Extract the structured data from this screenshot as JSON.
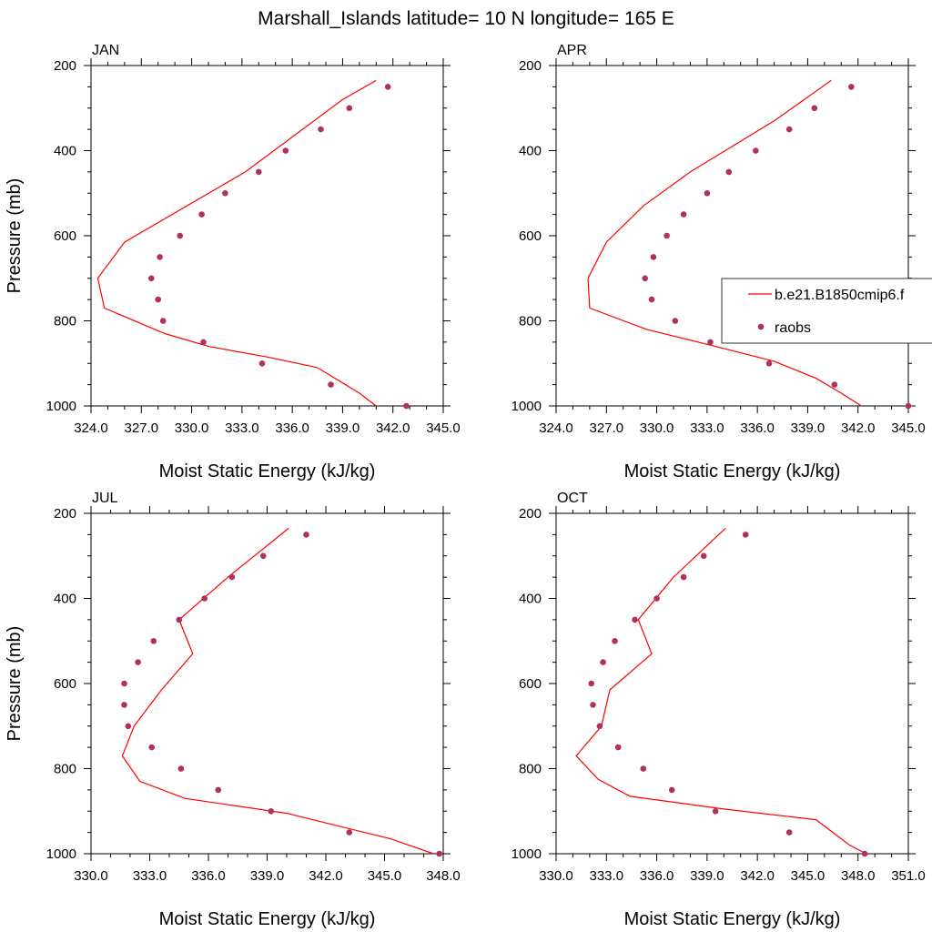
{
  "figure": {
    "title": "Marshall_Islands  latitude= 10 N longitude= 165 E"
  },
  "legend": {
    "items": [
      {
        "label": "b.e21.B1850cmip6.f",
        "kind": "line",
        "color": "#ff0000"
      },
      {
        "label": "raobs",
        "kind": "marker",
        "color": "#b03060"
      }
    ]
  },
  "colors": {
    "model_line": "#ff0000",
    "obs_marker": "#b03060"
  },
  "chart_data": [
    {
      "type": "line",
      "panel_label": "JAN",
      "xlabel": "Moist Static Energy (kJ/kg)",
      "ylabel": "Pressure (mb)",
      "xlim": [
        324.0,
        345.0
      ],
      "ylim": [
        200,
        1000
      ],
      "y_inverted": true,
      "xticks": [
        "324.0",
        "327.0",
        "330.0",
        "333.0",
        "336.0",
        "339.0",
        "342.0",
        "345.0"
      ],
      "yticks": [
        "200",
        "400",
        "600",
        "800",
        "1000"
      ],
      "series": [
        {
          "name": "b.e21.B1850cmip6.f",
          "kind": "line",
          "x": [
            341.0,
            339.0,
            333.2,
            326.0,
            324.4,
            324.8,
            328.4,
            331.0,
            334.5,
            337.5,
            340.0,
            341.0
          ],
          "y": [
            235,
            280,
            450,
            615,
            700,
            770,
            830,
            860,
            885,
            910,
            970,
            1000
          ]
        },
        {
          "name": "raobs",
          "kind": "scatter",
          "x": [
            341.7,
            339.4,
            337.7,
            335.6,
            334.0,
            332.0,
            330.6,
            329.3,
            328.1,
            327.6,
            328.0,
            328.3,
            330.7,
            334.2,
            338.3,
            342.8
          ],
          "y": [
            250,
            300,
            350,
            400,
            450,
            500,
            550,
            600,
            650,
            700,
            750,
            800,
            850,
            900,
            950,
            1000
          ]
        }
      ]
    },
    {
      "type": "line",
      "panel_label": "APR",
      "xlabel": "Moist Static Energy (kJ/kg)",
      "ylabel": "",
      "xlim": [
        324.0,
        345.0
      ],
      "ylim": [
        200,
        1000
      ],
      "y_inverted": true,
      "xticks": [
        "324.0",
        "327.0",
        "330.0",
        "333.0",
        "336.0",
        "339.0",
        "342.0",
        "345.0"
      ],
      "yticks": [
        "200",
        "400",
        "600",
        "800",
        "1000"
      ],
      "series": [
        {
          "name": "b.e21.B1850cmip6.f",
          "kind": "line",
          "x": [
            340.4,
            337.0,
            332.0,
            329.2,
            327.0,
            325.9,
            326.0,
            329.4,
            333.5,
            337.0,
            339.5,
            341.0,
            342.2
          ],
          "y": [
            235,
            330,
            450,
            530,
            615,
            700,
            770,
            820,
            860,
            895,
            935,
            970,
            1000
          ]
        },
        {
          "name": "raobs",
          "kind": "scatter",
          "x": [
            341.6,
            339.4,
            337.9,
            335.9,
            334.3,
            333.0,
            331.6,
            330.6,
            329.8,
            329.3,
            329.7,
            331.1,
            333.2,
            336.7,
            340.6,
            345.0
          ],
          "y": [
            250,
            300,
            350,
            400,
            450,
            500,
            550,
            600,
            650,
            700,
            750,
            800,
            850,
            900,
            950,
            1000
          ]
        }
      ]
    },
    {
      "type": "line",
      "panel_label": "JUL",
      "xlabel": "Moist Static Energy (kJ/kg)",
      "ylabel": "Pressure (mb)",
      "xlim": [
        330.0,
        348.0
      ],
      "ylim": [
        200,
        1000
      ],
      "y_inverted": true,
      "xticks": [
        "330.0",
        "333.0",
        "336.0",
        "339.0",
        "342.0",
        "345.0",
        "348.0"
      ],
      "yticks": [
        "200",
        "400",
        "600",
        "800",
        "1000"
      ],
      "series": [
        {
          "name": "b.e21.B1850cmip6.f",
          "kind": "line",
          "x": [
            340.1,
            337.0,
            334.5,
            335.2,
            333.6,
            332.2,
            331.6,
            332.5,
            334.8,
            340.0,
            345.3,
            347.5
          ],
          "y": [
            235,
            350,
            450,
            530,
            615,
            700,
            770,
            830,
            870,
            905,
            965,
            1000
          ]
        },
        {
          "name": "raobs",
          "kind": "scatter",
          "x": [
            341.0,
            338.8,
            337.2,
            335.8,
            334.5,
            333.2,
            332.4,
            331.7,
            331.7,
            331.9,
            333.1,
            334.6,
            336.5,
            339.2,
            343.2,
            347.8
          ],
          "y": [
            250,
            300,
            350,
            400,
            450,
            500,
            550,
            600,
            650,
            700,
            750,
            800,
            850,
            900,
            950,
            1000
          ]
        }
      ]
    },
    {
      "type": "line",
      "panel_label": "OCT",
      "xlabel": "Moist Static Energy (kJ/kg)",
      "ylabel": "",
      "xlim": [
        330.0,
        351.0
      ],
      "ylim": [
        200,
        1000
      ],
      "y_inverted": true,
      "xticks": [
        "330.0",
        "333.0",
        "336.0",
        "339.0",
        "342.0",
        "345.0",
        "348.0",
        "351.0"
      ],
      "yticks": [
        "200",
        "400",
        "600",
        "800",
        "1000"
      ],
      "series": [
        {
          "name": "b.e21.B1850cmip6.f",
          "kind": "line",
          "x": [
            340.1,
            337.0,
            334.9,
            335.7,
            333.2,
            332.7,
            331.2,
            332.5,
            334.4,
            340.0,
            345.5,
            347.5,
            348.5
          ],
          "y": [
            235,
            350,
            450,
            530,
            615,
            700,
            770,
            825,
            865,
            895,
            920,
            980,
            1000
          ]
        },
        {
          "name": "raobs",
          "kind": "scatter",
          "x": [
            341.3,
            338.8,
            337.6,
            336.0,
            334.7,
            333.5,
            332.8,
            332.1,
            332.2,
            332.6,
            333.7,
            335.2,
            336.9,
            339.5,
            343.9,
            348.4
          ],
          "y": [
            250,
            300,
            350,
            400,
            450,
            500,
            550,
            600,
            650,
            700,
            750,
            800,
            850,
            900,
            950,
            1000
          ]
        }
      ]
    }
  ]
}
